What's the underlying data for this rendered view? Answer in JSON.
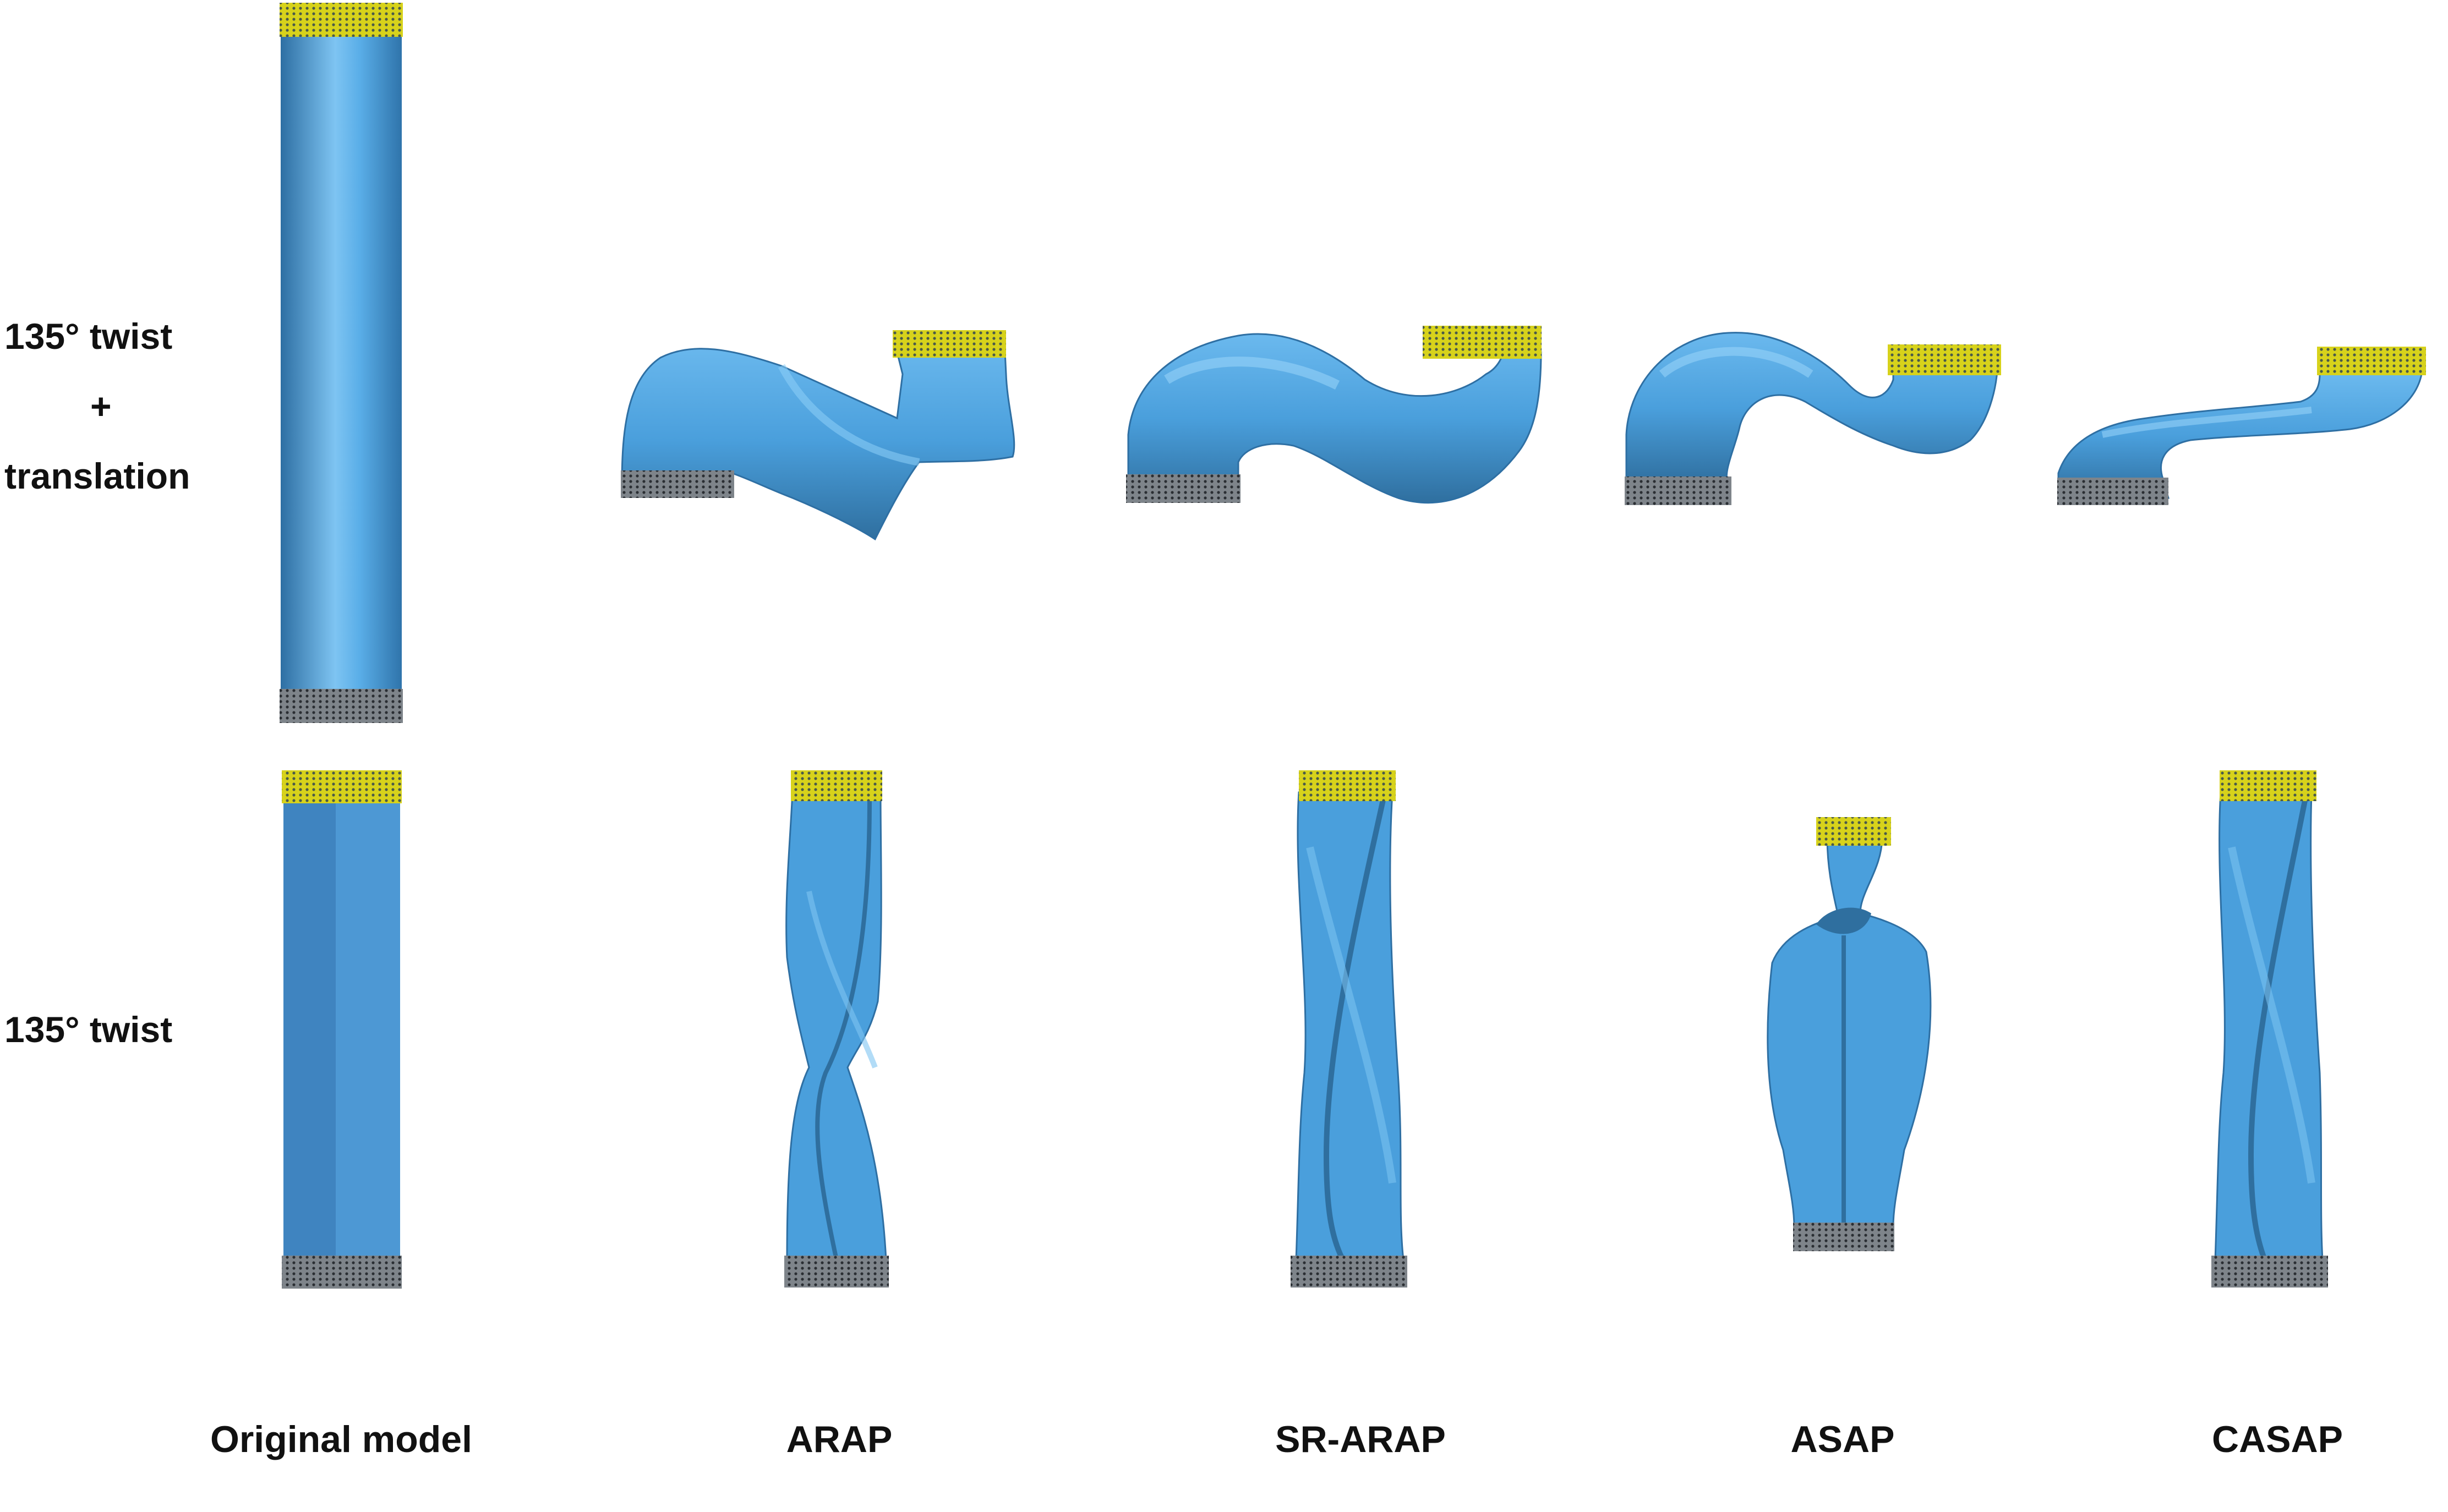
{
  "row_labels": {
    "twist_translation": {
      "line1": "135° twist",
      "line2": "+",
      "line3": "translation"
    },
    "twist": "135° twist"
  },
  "column_labels": [
    "Original model",
    "ARAP",
    "SR-ARAP",
    "ASAP",
    "CASAP"
  ],
  "colors": {
    "surface": "#4a9fdc",
    "surface_light": "#7ec4f2",
    "surface_dark": "#2e6fa3",
    "handle_top": "#e8e023",
    "handle_bottom": "#555a60"
  }
}
